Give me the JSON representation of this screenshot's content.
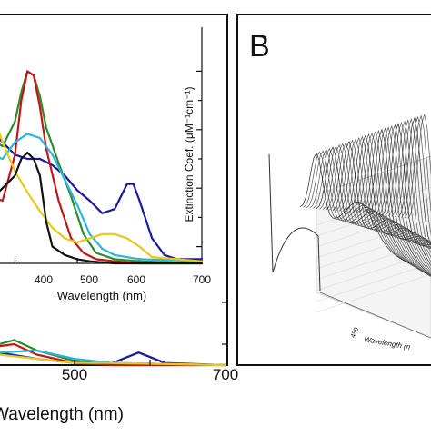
{
  "chart_data": [
    {
      "type": "line",
      "xlabel": "Wavelength (nm)",
      "ylabel": "",
      "xlim": [
        300,
        700
      ],
      "x_ticks": [
        "500",
        "700"
      ],
      "series": [
        {
          "color": "#1a1a9c",
          "x": [
            300,
            350,
            400,
            450,
            500,
            550,
            585,
            620,
            700
          ],
          "y": [
            0.02,
            0.05,
            0.06,
            0.03,
            0.01,
            0.01,
            0.06,
            0.01,
            0.0
          ]
        },
        {
          "color": "#2e8b2e",
          "x": [
            300,
            350,
            400,
            420,
            450,
            500,
            550,
            700
          ],
          "y": [
            0.02,
            0.06,
            0.1,
            0.12,
            0.07,
            0.02,
            0.01,
            0.0
          ]
        },
        {
          "color": "#c01818",
          "x": [
            300,
            350,
            400,
            420,
            450,
            500,
            550,
            700
          ],
          "y": [
            0.02,
            0.05,
            0.09,
            0.1,
            0.05,
            0.01,
            0.0,
            0.0
          ]
        },
        {
          "color": "#2bb5d8",
          "x": [
            300,
            350,
            400,
            450,
            500,
            550,
            700
          ],
          "y": [
            0.02,
            0.04,
            0.06,
            0.07,
            0.03,
            0.01,
            0.0
          ]
        },
        {
          "color": "#e8c81a",
          "x": [
            300,
            350,
            400,
            450,
            500,
            550,
            700
          ],
          "y": [
            0.01,
            0.04,
            0.05,
            0.03,
            0.01,
            0.01,
            0.0
          ]
        }
      ]
    },
    {
      "type": "line",
      "xlabel": "Wavelength (nm)",
      "ylabel": "Extinction Coef. (µM⁻¹cm⁻¹)",
      "xlim": [
        300,
        700
      ],
      "x_ticks": [
        "400",
        "500",
        "600",
        "700"
      ],
      "series": [
        {
          "color": "#1a1a9c",
          "x": [
            300,
            320,
            340,
            360,
            380,
            400,
            420,
            440,
            460,
            480,
            500,
            520,
            540,
            560,
            580,
            590,
            600,
            620,
            640,
            660,
            700
          ],
          "y": [
            0.55,
            0.6,
            0.72,
            0.64,
            0.58,
            0.52,
            0.5,
            0.5,
            0.47,
            0.42,
            0.35,
            0.3,
            0.24,
            0.26,
            0.38,
            0.38,
            0.3,
            0.12,
            0.04,
            0.02,
            0.02
          ]
        },
        {
          "color": "#2e8b2e",
          "x": [
            300,
            320,
            340,
            360,
            380,
            400,
            410,
            420,
            430,
            440,
            450,
            470,
            490,
            510,
            530,
            560,
            600,
            700
          ],
          "y": [
            0.5,
            0.62,
            0.66,
            0.6,
            0.56,
            0.68,
            0.82,
            0.92,
            0.9,
            0.8,
            0.65,
            0.48,
            0.32,
            0.14,
            0.05,
            0.02,
            0.01,
            0.0
          ]
        },
        {
          "color": "#c01818",
          "x": [
            300,
            320,
            340,
            360,
            380,
            400,
            410,
            420,
            430,
            440,
            450,
            470,
            490,
            510,
            530,
            560,
            600,
            700
          ],
          "y": [
            0.45,
            0.55,
            0.42,
            0.32,
            0.3,
            0.52,
            0.78,
            0.92,
            0.9,
            0.75,
            0.55,
            0.3,
            0.12,
            0.05,
            0.02,
            0.01,
            0.0,
            0.0
          ]
        },
        {
          "color": "#2bb5d8",
          "x": [
            300,
            320,
            340,
            360,
            380,
            400,
            420,
            440,
            460,
            480,
            500,
            520,
            540,
            560,
            600,
            700
          ],
          "y": [
            0.4,
            0.5,
            0.56,
            0.52,
            0.5,
            0.58,
            0.62,
            0.6,
            0.52,
            0.4,
            0.28,
            0.14,
            0.07,
            0.04,
            0.02,
            0.01
          ]
        },
        {
          "color": "#e8c81a",
          "x": [
            300,
            320,
            340,
            360,
            380,
            400,
            420,
            440,
            460,
            480,
            500,
            520,
            540,
            560,
            580,
            600,
            620,
            700
          ],
          "y": [
            0.5,
            0.72,
            0.84,
            0.75,
            0.58,
            0.44,
            0.34,
            0.25,
            0.17,
            0.12,
            0.1,
            0.12,
            0.14,
            0.14,
            0.12,
            0.08,
            0.03,
            0.01
          ]
        },
        {
          "color": "#111111",
          "x": [
            300,
            320,
            340,
            360,
            380,
            400,
            410,
            420,
            430,
            440,
            450,
            460,
            480,
            500,
            520,
            560,
            600,
            700
          ],
          "y": [
            0.35,
            0.3,
            0.27,
            0.3,
            0.36,
            0.42,
            0.5,
            0.53,
            0.5,
            0.42,
            0.2,
            0.08,
            0.04,
            0.02,
            0.01,
            0.0,
            0.0,
            0.0
          ]
        }
      ]
    },
    {
      "type": "area",
      "xlabel": "Wavelength (n",
      "x_ticks": [
        "450"
      ]
    }
  ],
  "panel_label": "B"
}
